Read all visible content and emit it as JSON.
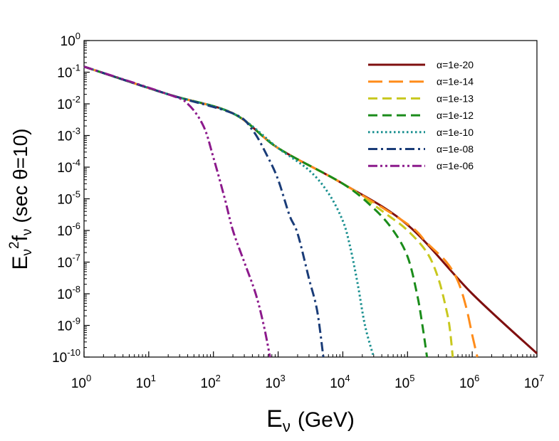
{
  "chart_data": {
    "type": "line",
    "xscale": "log",
    "yscale": "log",
    "xlim": [
      1,
      10000000
    ],
    "ylim": [
      1e-10,
      1
    ],
    "xlabel": {
      "main": "E",
      "sub": "ν",
      "rest": "(GeV)"
    },
    "ylabel": {
      "main": "E",
      "sub1": "ν",
      "sup": "2",
      "f": "f",
      "sub2": "ν",
      "rest": "(sec θ=10)"
    },
    "x_ticks": [
      {
        "base": "10",
        "exp": "0"
      },
      {
        "base": "10",
        "exp": "1"
      },
      {
        "base": "10",
        "exp": "2"
      },
      {
        "base": "10",
        "exp": "3"
      },
      {
        "base": "10",
        "exp": "4"
      },
      {
        "base": "10",
        "exp": "5"
      },
      {
        "base": "10",
        "exp": "6"
      },
      {
        "base": "10",
        "exp": "7"
      }
    ],
    "y_ticks": [
      {
        "base": "10",
        "exp": "0"
      },
      {
        "base": "10",
        "exp": "-1"
      },
      {
        "base": "10",
        "exp": "-2"
      },
      {
        "base": "10",
        "exp": "-3"
      },
      {
        "base": "10",
        "exp": "-4"
      },
      {
        "base": "10",
        "exp": "-5"
      },
      {
        "base": "10",
        "exp": "-6"
      },
      {
        "base": "10",
        "exp": "-7"
      },
      {
        "base": "10",
        "exp": "-8"
      },
      {
        "base": "10",
        "exp": "-9"
      },
      {
        "base": "10",
        "exp": "-10"
      }
    ],
    "legend_position": "top-right",
    "series": [
      {
        "name": "α=1e-20",
        "color": "#7f0f0f",
        "dash": "solid",
        "points": [
          [
            1,
            0.15
          ],
          [
            20,
            0.02
          ],
          [
            200,
            0.005
          ],
          [
            1000,
            0.0004
          ],
          [
            10000,
            3e-05
          ],
          [
            100000,
            1.5e-06
          ],
          [
            1000000,
            1e-08
          ],
          [
            10000000,
            1.3e-10
          ]
        ]
      },
      {
        "name": "α=1e-14",
        "color": "#ff8c1a",
        "dash": "longdash",
        "points": [
          [
            1,
            0.15
          ],
          [
            20,
            0.02
          ],
          [
            200,
            0.005
          ],
          [
            1000,
            0.0004
          ],
          [
            10000,
            3e-05
          ],
          [
            100000,
            1.6e-06
          ],
          [
            200000,
            4e-07
          ],
          [
            400000,
            1e-07
          ],
          [
            600000,
            2.5e-08
          ],
          [
            800000,
            4e-09
          ],
          [
            1000000,
            5e-10
          ],
          [
            1200000,
            1e-10
          ]
        ]
      },
      {
        "name": "α=1e-13",
        "color": "#c8c81e",
        "dash": "dash",
        "points": [
          [
            1,
            0.15
          ],
          [
            20,
            0.02
          ],
          [
            200,
            0.005
          ],
          [
            1000,
            0.0004
          ],
          [
            10000,
            3e-05
          ],
          [
            50000,
            3e-06
          ],
          [
            100000,
            1e-06
          ],
          [
            200000,
            2e-07
          ],
          [
            300000,
            3e-08
          ],
          [
            400000,
            3e-09
          ],
          [
            450000,
            8e-10
          ],
          [
            500000,
            1e-10
          ]
        ]
      },
      {
        "name": "α=1e-12",
        "color": "#1a8c1a",
        "dash": "dash",
        "points": [
          [
            1,
            0.15
          ],
          [
            20,
            0.02
          ],
          [
            200,
            0.005
          ],
          [
            1000,
            0.0004
          ],
          [
            10000,
            3e-05
          ],
          [
            30000,
            5e-06
          ],
          [
            60000,
            1e-06
          ],
          [
            100000,
            1.5e-07
          ],
          [
            140000,
            1e-08
          ],
          [
            170000,
            1e-09
          ],
          [
            200000,
            1e-10
          ]
        ]
      },
      {
        "name": "α=1e-10",
        "color": "#1a9090",
        "dash": "dot",
        "points": [
          [
            1,
            0.15
          ],
          [
            20,
            0.02
          ],
          [
            200,
            0.005
          ],
          [
            1000,
            0.0004
          ],
          [
            3000,
            8e-05
          ],
          [
            6000,
            1.5e-05
          ],
          [
            10000,
            2e-06
          ],
          [
            13000,
            3e-07
          ],
          [
            17000,
            2e-08
          ],
          [
            22000,
            1e-09
          ],
          [
            30000,
            1e-10
          ]
        ]
      },
      {
        "name": "α=1e-08",
        "color": "#1a3c78",
        "dash": "dashdot",
        "points": [
          [
            1,
            0.15
          ],
          [
            20,
            0.02
          ],
          [
            200,
            0.005
          ],
          [
            400,
            0.0015
          ],
          [
            700,
            0.0002
          ],
          [
            1000,
            4e-05
          ],
          [
            1500,
            3e-06
          ],
          [
            2000,
            8e-07
          ],
          [
            3000,
            3e-08
          ],
          [
            4000,
            3e-09
          ],
          [
            5000,
            1e-10
          ]
        ]
      },
      {
        "name": "α=1e-06",
        "color": "#8c1a8c",
        "dash": "dashdotdot",
        "points": [
          [
            1,
            0.15
          ],
          [
            20,
            0.02
          ],
          [
            40,
            0.01
          ],
          [
            70,
            0.002
          ],
          [
            100,
            0.0002
          ],
          [
            150,
            1e-05
          ],
          [
            200,
            1e-06
          ],
          [
            300,
            1e-07
          ],
          [
            450,
            1e-08
          ],
          [
            600,
            1e-09
          ],
          [
            750,
            1e-10
          ]
        ]
      }
    ]
  }
}
